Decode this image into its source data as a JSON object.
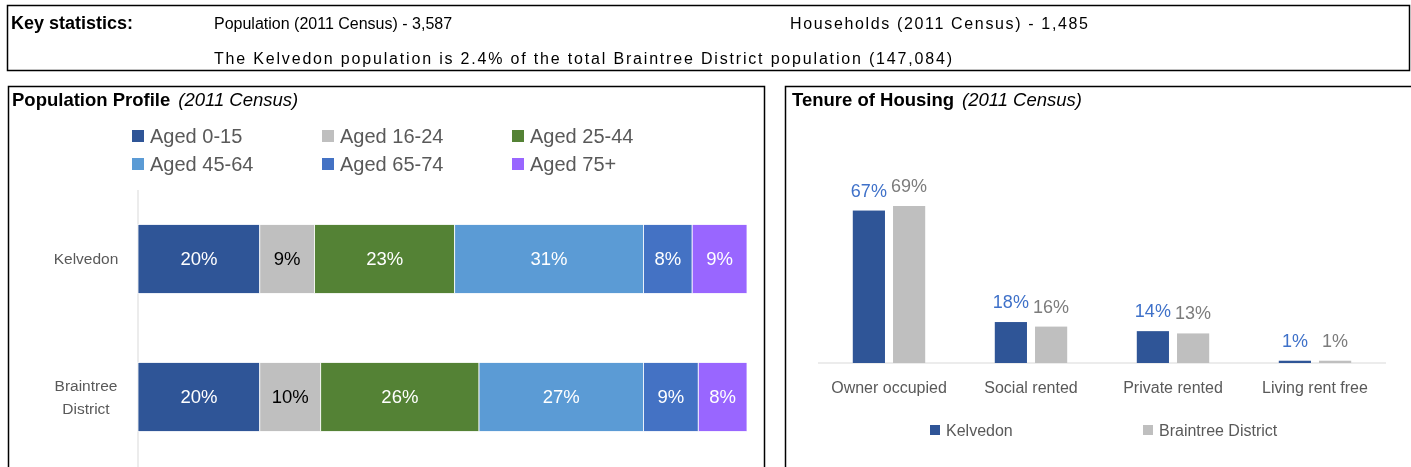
{
  "chart_data": [
    {
      "type": "other",
      "title": "Key statistics:",
      "annotations": [
        "Population (2011 Census) - 3,587",
        "Households (2011 Census) - 1,485",
        "The Kelvedon population is 2.4% of the total Braintree District population (147,084)"
      ]
    },
    {
      "type": "bar",
      "orientation": "horizontal",
      "stacked": true,
      "title": "Population Profile",
      "subtitle": "(2011 Census)",
      "categories": [
        "Kelvedon",
        "Braintree District"
      ],
      "series": [
        {
          "name": "Aged 0-15",
          "color": "#2f5597",
          "values": [
            20,
            20
          ],
          "value_labels": [
            "20%",
            "20%"
          ]
        },
        {
          "name": "Aged 16-24",
          "color": "#bfbfbf",
          "values": [
            9,
            10
          ],
          "value_labels": [
            "9%",
            "10%"
          ]
        },
        {
          "name": "Aged 25-44",
          "color": "#548235",
          "values": [
            23,
            26
          ],
          "value_labels": [
            "23%",
            "26%"
          ]
        },
        {
          "name": "Aged 45-64",
          "color": "#5b9bd5",
          "values": [
            31,
            27
          ],
          "value_labels": [
            "31%",
            "27%"
          ]
        },
        {
          "name": "Aged 65-74",
          "color": "#4472c4",
          "values": [
            8,
            9
          ],
          "value_labels": [
            "8%",
            "9%"
          ]
        },
        {
          "name": "Aged 75+",
          "color": "#9966ff",
          "values": [
            9,
            8
          ],
          "value_labels": [
            "9%",
            "8%"
          ]
        }
      ],
      "xlim": [
        0,
        100
      ],
      "legend": "top",
      "tick_labels": "y"
    },
    {
      "type": "bar",
      "title": "Tenure of Housing",
      "subtitle": "(2011 Census)",
      "categories": [
        "Owner occupied",
        "Social rented",
        "Private rented",
        "Living rent free"
      ],
      "series": [
        {
          "name": "Kelvedon",
          "color": "#2f5597",
          "values": [
            67,
            18,
            14,
            1
          ],
          "value_labels": [
            "67%",
            "18%",
            "14%",
            "1%"
          ]
        },
        {
          "name": "Braintree District",
          "color": "#bfbfbf",
          "values": [
            69,
            16,
            13,
            1
          ],
          "value_labels": [
            "69%",
            "16%",
            "13%",
            "1%"
          ]
        }
      ],
      "legend": "bottom",
      "tick_labels": "x"
    }
  ]
}
